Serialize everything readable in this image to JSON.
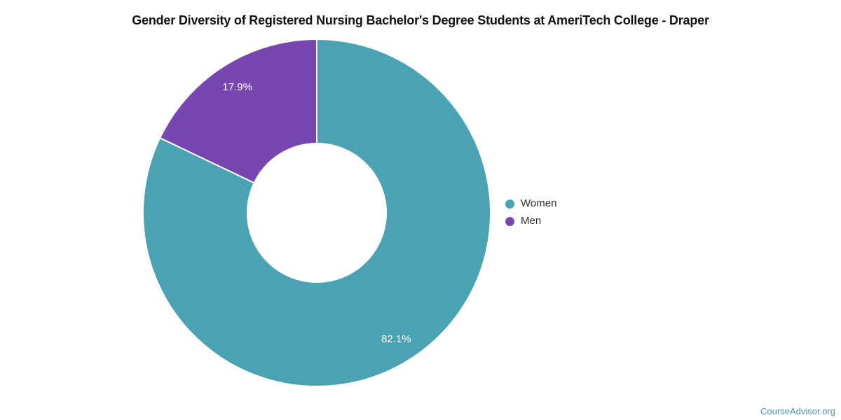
{
  "title": "Gender Diversity of Registered Nursing Bachelor's Degree Students at AmeriTech College - Draper",
  "legend": {
    "items": [
      {
        "label": "Women",
        "color": "#4AA2B2"
      },
      {
        "label": "Men",
        "color": "#7746AE"
      }
    ]
  },
  "footer": {
    "link_label": "CourseAdvisor.org",
    "color": "#4A96B8"
  },
  "chart_data": {
    "type": "pie",
    "subtype": "donut",
    "title": "Gender Diversity of Registered Nursing Bachelor's Degree Students at AmeriTech College - Draper",
    "categories": [
      "Women",
      "Men"
    ],
    "values": [
      82.1,
      17.9
    ],
    "labels": [
      "82.1%",
      "17.9%"
    ],
    "colors": [
      "#4AA2B2",
      "#7746AE"
    ],
    "inner_radius_ratio": 0.4,
    "start_angle": "top",
    "direction": "clockwise",
    "legend_position": "right",
    "slice_border_color": "#ffffff"
  }
}
